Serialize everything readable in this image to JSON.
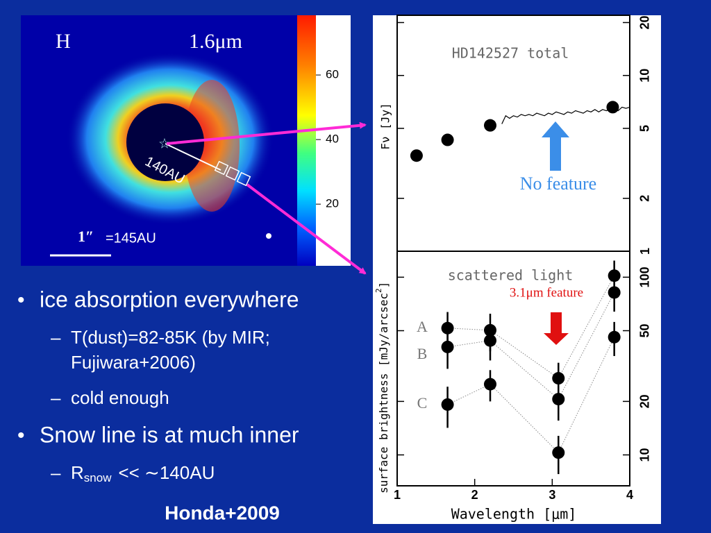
{
  "slide": {
    "bullets": [
      {
        "text": "ice absorption everywhere",
        "subs": [
          {
            "lines": [
              "T(dust)=82-85K (by MIR;",
              "Fujiwara+2006)"
            ]
          },
          {
            "lines": [
              "cold enough"
            ]
          }
        ]
      },
      {
        "text": "Snow line is at much inner",
        "subs": [
          {
            "text": "R",
            "sub": "snow",
            "rest": "<< ∼140AU"
          }
        ]
      }
    ],
    "credit": "Honda+2009"
  },
  "image": {
    "band": "H",
    "wavelength": "1.6μm",
    "radius_label": "140AU",
    "scale": "1″",
    "scale_au": "=145AU",
    "colorbar_lim": [
      0.9,
      78.5
    ],
    "colorbar_ticks": [
      20,
      40,
      60
    ]
  },
  "chart_data": [
    {
      "type": "scatter",
      "title": "HD142527 total",
      "ylabel": "Fν [Jy]",
      "log_y": true,
      "xlim": [
        1,
        4
      ],
      "ylim": [
        1,
        22
      ],
      "yticks": [
        1,
        2,
        5,
        10,
        20
      ],
      "color": "#000000",
      "series": [
        {
          "style": "points",
          "x": [
            1.25,
            1.65,
            2.2,
            3.78
          ],
          "values": [
            3.5,
            4.3,
            5.2,
            6.6
          ]
        },
        {
          "style": "line",
          "x": [
            2.35,
            2.4,
            2.45,
            2.5,
            2.55,
            2.6,
            2.65,
            2.7,
            2.75,
            2.8,
            2.85,
            2.9,
            2.95,
            3.0,
            3.05,
            3.1,
            3.15,
            3.2,
            3.25,
            3.3,
            3.35,
            3.4,
            3.45,
            3.5,
            3.55,
            3.6,
            3.65,
            3.7,
            3.75,
            3.8,
            3.85,
            3.9,
            3.95,
            4.0
          ],
          "values": [
            5.3,
            5.9,
            5.7,
            5.9,
            5.8,
            6.0,
            5.9,
            6.0,
            5.9,
            6.1,
            6.0,
            5.9,
            6.1,
            6.0,
            6.2,
            6.1,
            6.0,
            6.2,
            6.1,
            6.3,
            6.2,
            6.1,
            6.3,
            6.2,
            6.4,
            6.2,
            6.4,
            6.3,
            6.5,
            6.4,
            6.3,
            6.6,
            6.5,
            6.6
          ]
        }
      ],
      "annotation": "No feature",
      "annotation_color": "#3b8ee8"
    },
    {
      "type": "errorbar",
      "title": "scattered light",
      "ylabel": "surface brightness [mJy/arcsec",
      "ylabel_sup": "2",
      "xlabel": "Wavelength [μm]",
      "log_y": true,
      "xlim": [
        1,
        4
      ],
      "xticks": [
        1,
        2,
        3,
        4
      ],
      "ylim": [
        6.7,
        140
      ],
      "yticks": [
        10,
        20,
        50,
        100
      ],
      "color": "#000000",
      "series": [
        {
          "name": "A",
          "x": [
            1.65,
            2.2,
            3.08,
            3.8
          ],
          "values": [
            51.7,
            50.3,
            27,
            102
          ],
          "errors": [
            12,
            12,
            6,
            22
          ]
        },
        {
          "name": "B",
          "x": [
            1.65,
            2.2,
            3.08,
            3.8
          ],
          "values": [
            40.5,
            44,
            20.6,
            82
          ],
          "errors": [
            10,
            10,
            5,
            18
          ]
        },
        {
          "name": "C",
          "x": [
            1.65,
            2.2,
            3.08,
            3.8
          ],
          "values": [
            19.2,
            25,
            10.3,
            46
          ],
          "errors": [
            5,
            5,
            2.5,
            10
          ]
        }
      ],
      "annotation": "3.1μm feature",
      "annotation_color": "#e01010"
    }
  ]
}
